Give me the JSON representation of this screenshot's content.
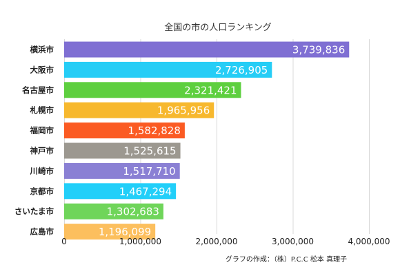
{
  "chart_data": {
    "type": "bar",
    "orientation": "horizontal",
    "title": "全国の市の人口ランキング",
    "categories": [
      "横浜市",
      "大阪市",
      "名古屋市",
      "札幌市",
      "福岡市",
      "神戸市",
      "川崎市",
      "京都市",
      "さいたま市",
      "広島市"
    ],
    "values": [
      3739836,
      2726905,
      2321421,
      1965956,
      1582828,
      1525615,
      1517710,
      1467294,
      1302683,
      1196099
    ],
    "value_labels": [
      "3,739,836",
      "2,726,905",
      "2,321,421",
      "1,965,956",
      "1,582,828",
      "1,525,615",
      "1,517,710",
      "1,467,294",
      "1,302,683",
      "1,196,099"
    ],
    "colors": [
      "#7f6fd3",
      "#26cdf6",
      "#5ecf3f",
      "#f7b82e",
      "#fb5b23",
      "#9c9890",
      "#8a80d4",
      "#22cff9",
      "#6fd55a",
      "#fcbf5e"
    ],
    "xlim": [
      0,
      4000000
    ],
    "xticks": [
      0,
      1000000,
      2000000,
      3000000,
      4000000
    ],
    "xtick_labels": [
      "0",
      "1,000,000",
      "2,000,000",
      "3,000,000",
      "4,000,000"
    ],
    "grid": true,
    "legend": "none"
  },
  "credit": "グラフの作成：（株）P.C.C 松本 真理子"
}
